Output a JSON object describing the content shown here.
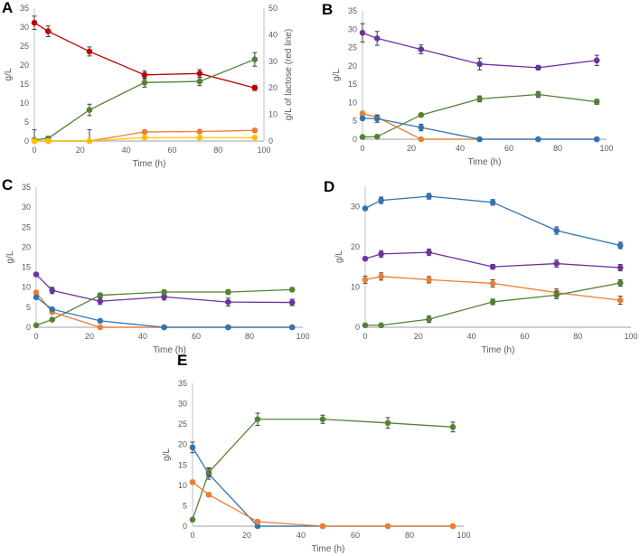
{
  "colors": {
    "red": "#c00000",
    "green": "#548235",
    "orange": "#ed7d31",
    "yellow": "#ffc000",
    "blue": "#2e75b6",
    "purple": "#7030a0",
    "axis": "#bfbfbf",
    "errbar": "#404040"
  },
  "chart_data": [
    {
      "panel": "A",
      "type": "line",
      "xlabel": "Time (h)",
      "ylabel": "g/L",
      "y2label": "g/L of lactose (red line)",
      "xlim": [
        0,
        100
      ],
      "xticks": [
        0,
        20,
        40,
        60,
        80,
        100
      ],
      "ylim": [
        0,
        35
      ],
      "yticks": [
        0,
        5,
        10,
        15,
        20,
        25,
        30,
        35
      ],
      "y2lim": [
        0,
        50
      ],
      "y2ticks": [
        0,
        10,
        20,
        30,
        40,
        50
      ],
      "x": [
        0,
        6,
        24,
        48,
        72,
        96
      ],
      "series": [
        {
          "color": "red",
          "axis": "right",
          "values": [
            44.5,
            41.3,
            33.7,
            24.9,
            25.4,
            20.0
          ],
          "err": [
            2.5,
            2.0,
            1.7,
            1.5,
            1.5,
            1.0
          ]
        },
        {
          "color": "green",
          "axis": "left",
          "values": [
            0.3,
            0.7,
            8.2,
            15.4,
            15.7,
            21.5
          ],
          "err": [
            2.7,
            0.3,
            1.5,
            1.2,
            1.1,
            1.8
          ]
        },
        {
          "color": "orange",
          "axis": "left",
          "values": [
            0,
            0,
            0,
            2.4,
            2.5,
            2.8
          ],
          "err": [
            0,
            0,
            3.0,
            0.3,
            0.3,
            0.3
          ]
        },
        {
          "color": "yellow",
          "axis": "left",
          "values": [
            0,
            0,
            0,
            0.9,
            0.9,
            0.9
          ],
          "err": [
            0,
            0,
            0,
            0.2,
            0.2,
            0.2
          ]
        }
      ]
    },
    {
      "panel": "B",
      "type": "line",
      "xlabel": "Time (h)",
      "ylabel": "g/L",
      "xlim": [
        0,
        100
      ],
      "xticks": [
        0,
        20,
        40,
        60,
        80,
        100
      ],
      "ylim": [
        0,
        35
      ],
      "yticks": [
        0,
        5,
        10,
        15,
        20,
        25,
        30,
        35
      ],
      "x": [
        0,
        6,
        24,
        48,
        72,
        96
      ],
      "series": [
        {
          "color": "purple",
          "axis": "left",
          "values": [
            29.0,
            27.5,
            24.5,
            20.5,
            19.5,
            21.5
          ],
          "err": [
            2.5,
            1.9,
            1.2,
            1.6,
            0.6,
            1.4
          ]
        },
        {
          "color": "green",
          "axis": "left",
          "values": [
            0.6,
            0.7,
            6.6,
            11.0,
            12.2,
            10.2
          ],
          "err": [
            0.2,
            0.2,
            0.4,
            0.8,
            0.8,
            0.7
          ]
        },
        {
          "color": "orange",
          "axis": "left",
          "values": [
            7.0,
            6.0,
            0,
            0,
            0,
            0
          ],
          "err": [
            0.6,
            0.6,
            0,
            0,
            0,
            0
          ]
        },
        {
          "color": "blue",
          "axis": "left",
          "values": [
            5.7,
            5.6,
            3.2,
            0,
            0,
            0
          ],
          "err": [
            0.5,
            1.0,
            0.9,
            0,
            0,
            0
          ]
        }
      ]
    },
    {
      "panel": "C",
      "type": "line",
      "xlabel": "Time (h)",
      "ylabel": "g/L",
      "xlim": [
        0,
        100
      ],
      "xticks": [
        0,
        20,
        40,
        60,
        80,
        100
      ],
      "ylim": [
        0,
        35
      ],
      "yticks": [
        0,
        5,
        10,
        15,
        20,
        25,
        30,
        35
      ],
      "x": [
        0,
        6,
        24,
        48,
        72,
        96
      ],
      "series": [
        {
          "color": "purple",
          "axis": "left",
          "values": [
            13.2,
            9.2,
            6.5,
            7.6,
            6.3,
            6.2
          ],
          "err": [
            0.4,
            0.8,
            0.8,
            0.8,
            1.0,
            0.8
          ]
        },
        {
          "color": "green",
          "axis": "left",
          "values": [
            0.5,
            1.9,
            8.0,
            8.8,
            8.8,
            9.4
          ],
          "err": [
            0.2,
            0.2,
            0.5,
            0.5,
            0.6,
            0.5
          ]
        },
        {
          "color": "orange",
          "axis": "left",
          "values": [
            8.7,
            3.8,
            0,
            0,
            0,
            0
          ],
          "err": [
            0.3,
            0.3,
            0,
            0,
            0,
            0
          ]
        },
        {
          "color": "blue",
          "axis": "left",
          "values": [
            7.5,
            4.5,
            1.6,
            0,
            0,
            0
          ],
          "err": [
            0.3,
            0.3,
            0.2,
            0,
            0,
            0
          ]
        }
      ]
    },
    {
      "panel": "D",
      "type": "line",
      "xlabel": "Time (h)",
      "ylabel": "g/L",
      "xlim": [
        0,
        100
      ],
      "xticks": [
        0,
        20,
        40,
        60,
        80,
        100
      ],
      "ylim": [
        0,
        35
      ],
      "yticks": [
        0,
        10,
        20,
        30
      ],
      "x": [
        0,
        6,
        24,
        48,
        72,
        96
      ],
      "series": [
        {
          "color": "blue",
          "axis": "left",
          "values": [
            29.5,
            31.5,
            32.5,
            31.0,
            24.0,
            20.3
          ],
          "err": [
            0.4,
            0.8,
            0.7,
            0.7,
            0.9,
            0.8
          ]
        },
        {
          "color": "purple",
          "axis": "left",
          "values": [
            17.0,
            18.2,
            18.6,
            15.0,
            15.8,
            14.8
          ],
          "err": [
            0.4,
            0.8,
            0.8,
            0.6,
            0.9,
            0.8
          ]
        },
        {
          "color": "orange",
          "axis": "left",
          "values": [
            11.8,
            12.6,
            11.8,
            10.9,
            8.6,
            6.7
          ],
          "err": [
            0.9,
            0.9,
            0.8,
            0.9,
            0.9,
            1.0
          ]
        },
        {
          "color": "green",
          "axis": "left",
          "values": [
            0.5,
            0.5,
            2.0,
            6.3,
            8.0,
            11.0
          ],
          "err": [
            0.3,
            0.4,
            0.8,
            0.7,
            0.9,
            0.8
          ]
        }
      ]
    },
    {
      "panel": "E",
      "type": "line",
      "xlabel": "Time (h)",
      "ylabel": "g/L",
      "xlim": [
        0,
        100
      ],
      "xticks": [
        0,
        20,
        40,
        60,
        80,
        100
      ],
      "ylim": [
        0,
        35
      ],
      "yticks": [
        0,
        5,
        10,
        15,
        20,
        25,
        30,
        35
      ],
      "x": [
        0,
        6,
        24,
        48,
        72,
        96
      ],
      "series": [
        {
          "color": "blue",
          "axis": "left",
          "values": [
            19.3,
            12.8,
            0,
            0,
            0,
            0
          ],
          "err": [
            1.3,
            1.3,
            0,
            0,
            0,
            0
          ]
        },
        {
          "color": "green",
          "axis": "left",
          "values": [
            1.6,
            13.2,
            26.2,
            26.2,
            25.3,
            24.3
          ],
          "err": [
            0.2,
            1.1,
            1.5,
            1.0,
            1.3,
            1.2
          ]
        },
        {
          "color": "orange",
          "axis": "left",
          "values": [
            10.8,
            7.7,
            1.1,
            0,
            0,
            0
          ],
          "err": [
            0.3,
            0.5,
            0.2,
            0,
            0,
            0
          ]
        }
      ]
    }
  ]
}
